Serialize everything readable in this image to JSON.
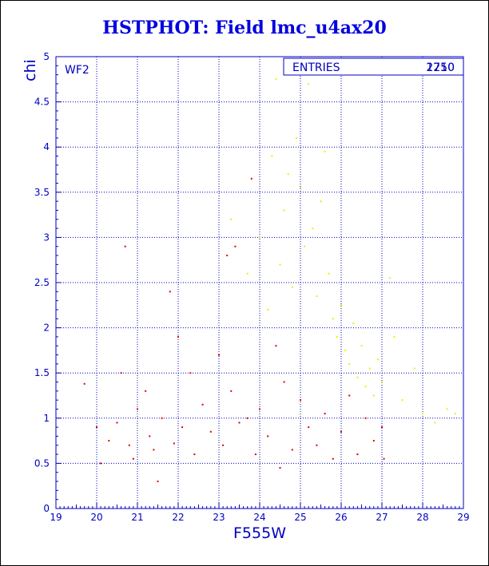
{
  "chart_data": {
    "type": "scatter",
    "title": "HSTPHOT: Field lmc_u4ax20",
    "xlabel": "F555W",
    "ylabel": "chi",
    "xlim": [
      19,
      29
    ],
    "ylim": [
      0,
      5
    ],
    "x_ticks": [
      "19",
      "20",
      "21",
      "22",
      "23",
      "24",
      "25",
      "26",
      "27",
      "28",
      "29"
    ],
    "y_ticks": [
      "0",
      "0.5",
      "1",
      "1.5",
      "2",
      "2.5",
      "3",
      "3.5",
      "4",
      "4.5",
      "5"
    ],
    "grid": true,
    "annotation": "WF2",
    "stats_box": {
      "label": "ENTRIES",
      "values": [
        "2750",
        "1210"
      ],
      "placement": "top-right"
    },
    "series": [
      {
        "color": "#dd0000",
        "points": [
          [
            19.7,
            1.38
          ],
          [
            20.0,
            0.9
          ],
          [
            20.1,
            0.5
          ],
          [
            20.3,
            0.75
          ],
          [
            20.5,
            0.95
          ],
          [
            20.6,
            1.5
          ],
          [
            20.7,
            2.9
          ],
          [
            20.8,
            0.7
          ],
          [
            20.9,
            0.55
          ],
          [
            21.0,
            1.1
          ],
          [
            21.2,
            1.3
          ],
          [
            21.3,
            0.8
          ],
          [
            21.4,
            0.65
          ],
          [
            21.5,
            0.3
          ],
          [
            21.6,
            1.0
          ],
          [
            21.8,
            2.4
          ],
          [
            21.9,
            0.72
          ],
          [
            22.0,
            1.9
          ],
          [
            22.1,
            0.9
          ],
          [
            22.3,
            1.5
          ],
          [
            22.4,
            0.6
          ],
          [
            22.6,
            1.15
          ],
          [
            22.8,
            0.85
          ],
          [
            23.0,
            1.7
          ],
          [
            23.1,
            0.7
          ],
          [
            23.2,
            2.8
          ],
          [
            23.3,
            1.3
          ],
          [
            23.4,
            2.9
          ],
          [
            23.5,
            0.95
          ],
          [
            23.7,
            1.0
          ],
          [
            23.8,
            3.65
          ],
          [
            23.9,
            0.6
          ],
          [
            24.0,
            1.1
          ],
          [
            24.2,
            0.8
          ],
          [
            24.4,
            1.8
          ],
          [
            24.5,
            0.45
          ],
          [
            24.6,
            1.4
          ],
          [
            24.8,
            0.65
          ],
          [
            25.0,
            1.2
          ],
          [
            25.2,
            0.9
          ],
          [
            25.4,
            0.7
          ],
          [
            25.6,
            1.05
          ],
          [
            25.8,
            0.55
          ],
          [
            26.0,
            0.85
          ],
          [
            26.2,
            1.25
          ],
          [
            26.4,
            0.6
          ],
          [
            26.6,
            1.0
          ],
          [
            26.8,
            0.75
          ],
          [
            27.0,
            0.9
          ],
          [
            27.05,
            0.55
          ]
        ]
      },
      {
        "color": "#eeee00",
        "points": [
          [
            23.3,
            3.2
          ],
          [
            23.7,
            2.6
          ],
          [
            24.0,
            3.0
          ],
          [
            24.2,
            2.2
          ],
          [
            24.3,
            3.9
          ],
          [
            24.4,
            4.75
          ],
          [
            24.5,
            2.7
          ],
          [
            24.6,
            3.3
          ],
          [
            24.7,
            3.7
          ],
          [
            24.8,
            2.45
          ],
          [
            24.9,
            4.1
          ],
          [
            25.0,
            3.55
          ],
          [
            25.1,
            2.9
          ],
          [
            25.2,
            4.7
          ],
          [
            25.3,
            3.1
          ],
          [
            25.4,
            2.35
          ],
          [
            25.5,
            3.4
          ],
          [
            25.6,
            3.95
          ],
          [
            25.7,
            2.6
          ],
          [
            25.8,
            2.1
          ],
          [
            25.9,
            1.9
          ],
          [
            26.0,
            2.25
          ],
          [
            26.1,
            1.75
          ],
          [
            26.2,
            1.6
          ],
          [
            26.3,
            2.05
          ],
          [
            26.4,
            1.45
          ],
          [
            26.5,
            1.8
          ],
          [
            26.6,
            1.35
          ],
          [
            26.7,
            1.55
          ],
          [
            26.8,
            1.25
          ],
          [
            26.9,
            1.65
          ],
          [
            27.0,
            1.4
          ],
          [
            27.2,
            2.55
          ],
          [
            27.3,
            1.9
          ],
          [
            27.5,
            1.2
          ],
          [
            27.8,
            1.55
          ],
          [
            28.0,
            1.05
          ],
          [
            28.3,
            0.95
          ],
          [
            28.6,
            1.1
          ],
          [
            28.8,
            1.05
          ]
        ]
      }
    ]
  }
}
